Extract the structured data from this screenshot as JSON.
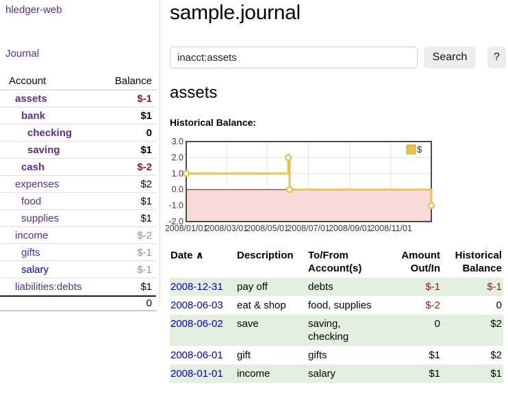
{
  "app": {
    "title": "hledger-web"
  },
  "sidebar": {
    "journal_link": "Journal",
    "accounts_table": {
      "account_header": "Account",
      "balance_header": "Balance",
      "rows": [
        {
          "name": "assets",
          "depth": 1,
          "bold": true,
          "balance": "$-1",
          "balance_style": "neg-strong",
          "link_color": "purple"
        },
        {
          "name": "bank",
          "depth": 2,
          "bold": true,
          "balance": "$1",
          "balance_style": "pos-strong",
          "link_color": "purple"
        },
        {
          "name": "checking",
          "depth": 3,
          "bold": true,
          "balance": "0",
          "balance_style": "pos-strong",
          "link_color": "purple"
        },
        {
          "name": "saving",
          "depth": 3,
          "bold": true,
          "balance": "$1",
          "balance_style": "pos-strong",
          "link_color": "purple"
        },
        {
          "name": "cash",
          "depth": 2,
          "bold": true,
          "balance": "$-2",
          "balance_style": "neg-strong",
          "link_color": "purple"
        },
        {
          "name": "expenses",
          "depth": 1,
          "bold": false,
          "balance": "$2",
          "balance_style": "pos",
          "link_color": "purple"
        },
        {
          "name": "food",
          "depth": 2,
          "bold": false,
          "balance": "$1",
          "balance_style": "pos",
          "link_color": "purple"
        },
        {
          "name": "supplies",
          "depth": 2,
          "bold": false,
          "balance": "$1",
          "balance_style": "pos",
          "link_color": "purple"
        },
        {
          "name": "income",
          "depth": 1,
          "bold": false,
          "balance": "$-2",
          "balance_style": "neg",
          "link_color": "purple"
        },
        {
          "name": "gifts",
          "depth": 2,
          "bold": false,
          "balance": "$-1",
          "balance_style": "neg",
          "link_color": "purple"
        },
        {
          "name": "salary",
          "depth": 2,
          "bold": false,
          "balance": "$-1",
          "balance_style": "neg",
          "link_color": "blue"
        },
        {
          "name": "liabilities:debts",
          "depth": 1,
          "bold": false,
          "balance": "$1",
          "balance_style": "pos",
          "link_color": "purple"
        }
      ],
      "total": "0"
    }
  },
  "header": {
    "title": "sample.journal"
  },
  "search": {
    "value": "inacct:assets",
    "clear_icon": "×",
    "search_button": "Search",
    "help_button": "?"
  },
  "register": {
    "heading": "assets",
    "chart_label": "Historical Balance:"
  },
  "chart_data": {
    "type": "line",
    "title": "Historical Balance",
    "step": true,
    "series": [
      {
        "name": "$",
        "color": "#E8C34D",
        "points": [
          {
            "date": "2008-01-01",
            "day": 0,
            "value": 1.0
          },
          {
            "date": "2008-06-01",
            "day": 152,
            "value": 2.0
          },
          {
            "date": "2008-06-03",
            "day": 154,
            "value": 0.0
          },
          {
            "date": "2008-12-31",
            "day": 365,
            "value": -1.0
          }
        ]
      }
    ],
    "ylim": [
      -2.0,
      3.0
    ],
    "y_ticks": [
      3.0,
      2.0,
      1.0,
      0.0,
      -1.0,
      -2.0
    ],
    "xlim_days": [
      0,
      365
    ],
    "x_ticks": [
      {
        "label": "2008/01/01",
        "day": 0
      },
      {
        "label": "2008/03/01",
        "day": 60
      },
      {
        "label": "2008/05/01",
        "day": 121
      },
      {
        "label": "2008/07/01",
        "day": 182
      },
      {
        "label": "2008/09/01",
        "day": 244
      },
      {
        "label": "2008/11/01",
        "day": 305
      }
    ],
    "grid": true,
    "legend_position": "top-right",
    "legend": [
      {
        "label": "$",
        "color": "#EDC240"
      }
    ],
    "negative_fill": "#f9dada",
    "zero_line_color": "#8b0000",
    "border_color": "#4a4a4a",
    "grid_color": "#e4e4e4"
  },
  "transactions": {
    "headers": {
      "date": "Date",
      "sort_arrow": "∧",
      "description": "Description",
      "accounts": "To/From Account(s)",
      "amount": "Amount Out/In",
      "balance": "Historical Balance"
    },
    "rows": [
      {
        "date": "2008-12-31",
        "description": "pay off",
        "accounts": "debts",
        "amount": "$-1",
        "amount_neg": true,
        "balance": "$-1",
        "balance_neg": true
      },
      {
        "date": "2008-06-03",
        "description": "eat & shop",
        "accounts": "food, supplies",
        "amount": "$-2",
        "amount_neg": true,
        "balance": "0",
        "balance_neg": false
      },
      {
        "date": "2008-06-02",
        "description": "save",
        "accounts": "saving, checking",
        "amount": "0",
        "amount_neg": false,
        "balance": "$2",
        "balance_neg": false
      },
      {
        "date": "2008-06-01",
        "description": "gift",
        "accounts": "gifts",
        "amount": "$1",
        "amount_neg": false,
        "balance": "$2",
        "balance_neg": false
      },
      {
        "date": "2008-01-01",
        "description": "income",
        "accounts": "salary",
        "amount": "$1",
        "amount_neg": false,
        "balance": "$1",
        "balance_neg": false
      }
    ]
  }
}
